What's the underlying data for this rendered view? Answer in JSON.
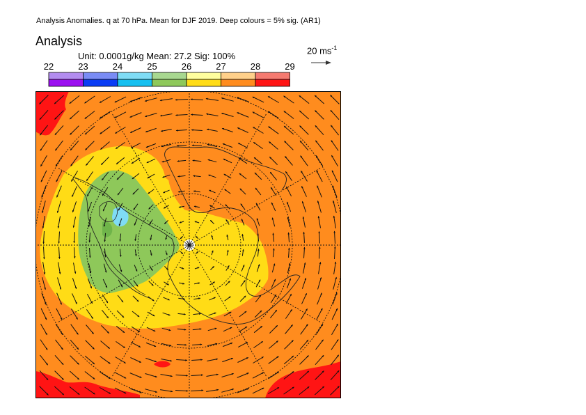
{
  "header": {
    "line": "Analysis Anomalies. q at 70 hPa. Mean for DJF 2019.  Deep colours = 5% sig. (AR1)"
  },
  "panel": {
    "title": "Analysis",
    "subtitle": "Unit: 0.0001g/kg  Mean: 27.2  Sig: 100%"
  },
  "colorbar": {
    "ticks": [
      "22",
      "23",
      "24",
      "25",
      "26",
      "27",
      "28",
      "29"
    ],
    "light_colors": [
      "#b38cf0",
      "#7a8cf5",
      "#7fdcf5",
      "#a8d890",
      "#ffff9e",
      "#ffd08a",
      "#f57a70"
    ],
    "deep_colors": [
      "#9b0ff0",
      "#0a3cf5",
      "#16c0f0",
      "#8ec85a",
      "#ffdc16",
      "#ff8c1e",
      "#ff1414"
    ]
  },
  "vector_key": {
    "label": "20 ms",
    "exponent": "-1"
  },
  "colors": {
    "red": "#ff1414",
    "orange": "#ff8c1e",
    "yellow": "#ffdc16",
    "green": "#8ec85a",
    "cyan": "#7fdcf5"
  }
}
